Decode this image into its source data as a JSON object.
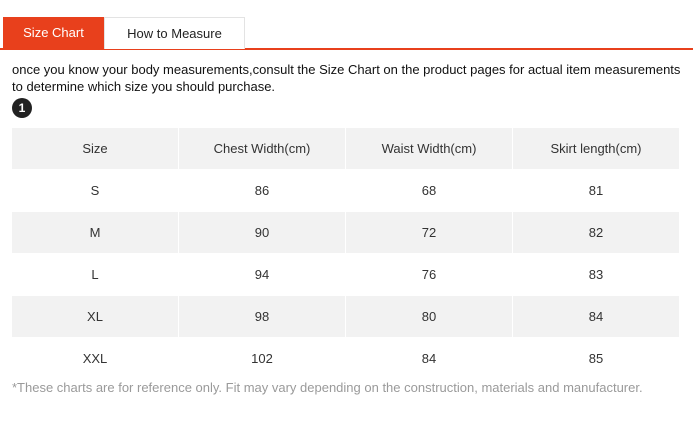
{
  "tabs": {
    "size_chart": "Size Chart",
    "how_to_measure": "How to Measure"
  },
  "intro_text": "once you know your body measurements,consult the Size Chart on the product pages for actual item measurements to determine which size you should purchase.",
  "step_badge": "1",
  "table": {
    "headers": [
      "Size",
      "Chest Width(cm)",
      "Waist Width(cm)",
      "Skirt length(cm)"
    ],
    "rows": [
      [
        "S",
        "86",
        "68",
        "81"
      ],
      [
        "M",
        "90",
        "72",
        "82"
      ],
      [
        "L",
        "94",
        "76",
        "83"
      ],
      [
        "XL",
        "98",
        "80",
        "84"
      ],
      [
        "XXL",
        "102",
        "84",
        "85"
      ]
    ]
  },
  "footnote": "*These charts are for reference only. Fit may vary depending on the construction, materials and manufacturer.",
  "colors": {
    "accent": "#e8401c",
    "row_shade": "#f2f2f2",
    "footnote": "#9a9a9a"
  }
}
